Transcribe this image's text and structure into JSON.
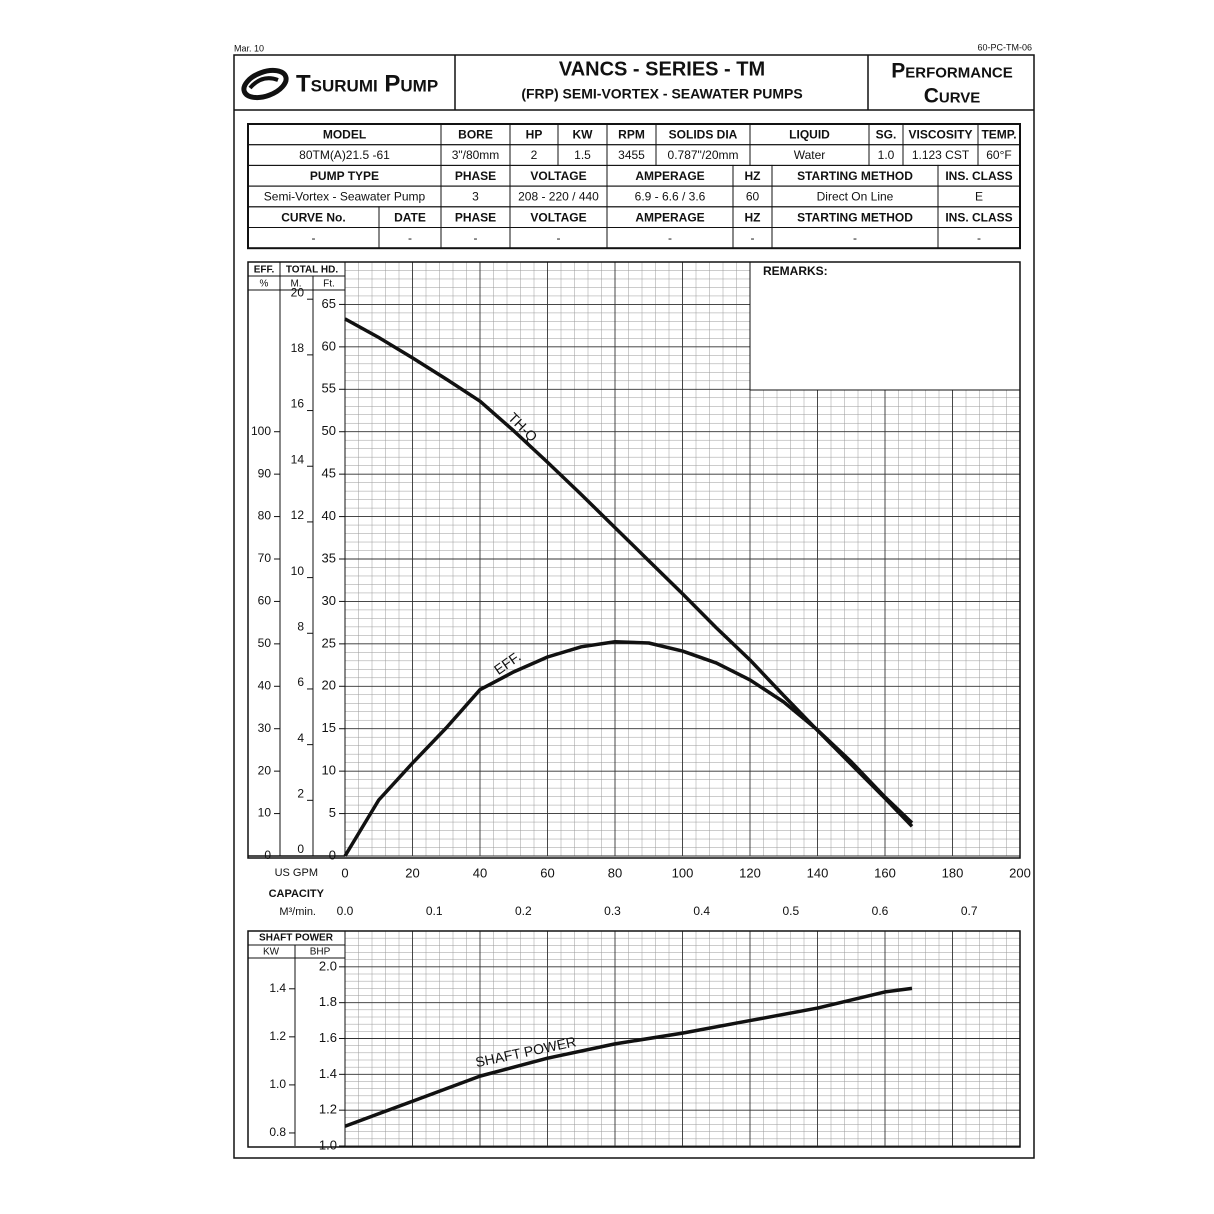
{
  "header": {
    "date": "Mar. 10",
    "code": "60-PC-TM-06",
    "brand": "Tsurumi Pump",
    "series": "VANCS - SERIES - TM",
    "subtitle": "(FRP) SEMI-VORTEX - SEAWATER PUMPS",
    "doc_title": [
      "Performance",
      "Curve"
    ]
  },
  "table": {
    "rows": [
      [
        "MODEL",
        "BORE",
        "HP",
        "KW",
        "RPM",
        "SOLIDS DIA",
        "LIQUID",
        "SG.",
        "VISCOSITY",
        "TEMP."
      ],
      [
        "80TM(A)21.5 -61",
        "3\"/80mm",
        "2",
        "1.5",
        "3455",
        "0.787\"/20mm",
        "Water",
        "1.0",
        "1.123 CST",
        "60°F"
      ],
      [
        "PUMP TYPE",
        "PHASE",
        "VOLTAGE",
        "AMPERAGE",
        "HZ",
        "STARTING METHOD",
        "INS. CLASS"
      ],
      [
        "Semi-Vortex - Seawater Pump",
        "3",
        "208 - 220 / 440",
        "6.9 - 6.6 / 3.6",
        "60",
        "Direct On Line",
        "E"
      ],
      [
        "CURVE No.",
        "DATE",
        "PHASE",
        "VOLTAGE",
        "AMPERAGE",
        "HZ",
        "STARTING METHOD",
        "INS. CLASS"
      ],
      [
        "-",
        "-",
        "-",
        "-",
        "-",
        "-",
        "-",
        "-"
      ]
    ]
  },
  "remarks": {
    "label": "REMARKS:"
  },
  "chart_data": [
    {
      "type": "line",
      "grid": true,
      "x_label": "US GPM",
      "x2_title": "CAPACITY",
      "x2_label": "M³/min.",
      "xlim": [
        0,
        200
      ],
      "xticks": [
        0,
        20,
        40,
        60,
        80,
        100,
        120,
        140,
        160,
        180,
        200
      ],
      "x2lim": [
        0,
        0.757
      ],
      "x2ticks": [
        {
          "value": 0,
          "label": "0.0"
        },
        0.1,
        0.2,
        0.3,
        0.4,
        0.5,
        0.6,
        0.7
      ],
      "head_title": "TOTAL HD.",
      "y_label": "Ft.",
      "ylim": [
        0,
        70
      ],
      "yticks": [
        0,
        5,
        10,
        15,
        20,
        25,
        30,
        35,
        40,
        45,
        50,
        55,
        60,
        65
      ],
      "y2_label": "M.",
      "y2lim": [
        0,
        21.336
      ],
      "y2ticks": [
        0,
        2,
        4,
        6,
        8,
        10,
        12,
        14,
        16,
        18,
        20
      ],
      "y3_title": "EFF.",
      "y3_label": "%",
      "y3lim": [
        0,
        140
      ],
      "y3ticks": [
        0,
        10,
        20,
        30,
        40,
        50,
        60,
        70,
        80,
        90,
        100
      ],
      "series": [
        {
          "name": "TH-Q",
          "color": "#111111",
          "x": [
            0,
            10,
            20,
            30,
            40,
            50,
            60,
            70,
            80,
            90,
            100,
            110,
            120,
            130,
            140,
            150,
            160,
            168
          ],
          "values": [
            63.3,
            61.1,
            58.7,
            56.2,
            53.6,
            50.1,
            46.4,
            42.6,
            38.7,
            34.8,
            30.9,
            26.9,
            23.1,
            18.9,
            14.8,
            10.8,
            6.8,
            3.5
          ]
        },
        {
          "name": "EFF.",
          "color": "#111111",
          "axis": "y3",
          "x": [
            0,
            10,
            20,
            30,
            40,
            50,
            60,
            70,
            80,
            90,
            100,
            110,
            120,
            130,
            140,
            150,
            160,
            168
          ],
          "values": [
            0,
            13.2,
            21.9,
            30.2,
            39.2,
            43.4,
            46.9,
            49.3,
            50.5,
            50.2,
            48.3,
            45.5,
            41.5,
            36.3,
            29.7,
            22.2,
            13.9,
            7.8
          ]
        }
      ]
    },
    {
      "type": "line",
      "grid": true,
      "title": "SHAFT POWER",
      "xlim": [
        0,
        200
      ],
      "y_label": "BHP",
      "ylim": [
        1.0,
        2.2
      ],
      "yticks": [
        {
          "value": 1.0,
          "label": "1.0"
        },
        1.2,
        1.4,
        1.6,
        1.8,
        {
          "value": 2.0,
          "label": "2.0"
        }
      ],
      "y2_label": "KW",
      "y2lim": [
        0.7457,
        1.6405
      ],
      "y2ticks": [
        0.8,
        {
          "value": 1.0,
          "label": "1.0"
        },
        1.2,
        1.4
      ],
      "series": [
        {
          "name": "SHAFT POWER",
          "color": "#111111",
          "x": [
            0,
            20,
            40,
            60,
            80,
            100,
            120,
            140,
            160,
            168
          ],
          "values": [
            1.11,
            1.25,
            1.39,
            1.49,
            1.57,
            1.63,
            1.7,
            1.77,
            1.86,
            1.88
          ]
        }
      ]
    }
  ]
}
